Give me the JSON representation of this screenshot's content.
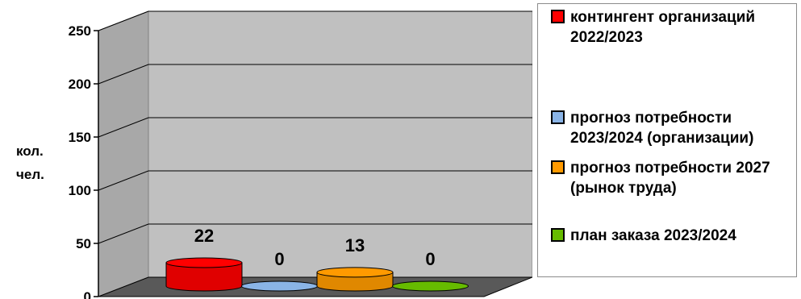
{
  "chart_data": {
    "type": "bar",
    "style": "3d-cylinder",
    "categories": [
      "контингент организаций 2022/2023",
      "прогноз потребности 2023/2024 (организации)",
      "прогноз потребности 2027 (рынок труда)",
      "план заказа 2023/2024"
    ],
    "values": [
      22,
      0,
      13,
      0
    ],
    "colors": [
      "#ff0000",
      "#8ab4e6",
      "#ff9a00",
      "#66bb00"
    ],
    "ylabel": [
      "кол.",
      "чел."
    ],
    "ylim": [
      0,
      250
    ],
    "yticks": [
      "0",
      "50",
      "100",
      "150",
      "200",
      "250"
    ],
    "grid": true,
    "legend_position": "right"
  }
}
